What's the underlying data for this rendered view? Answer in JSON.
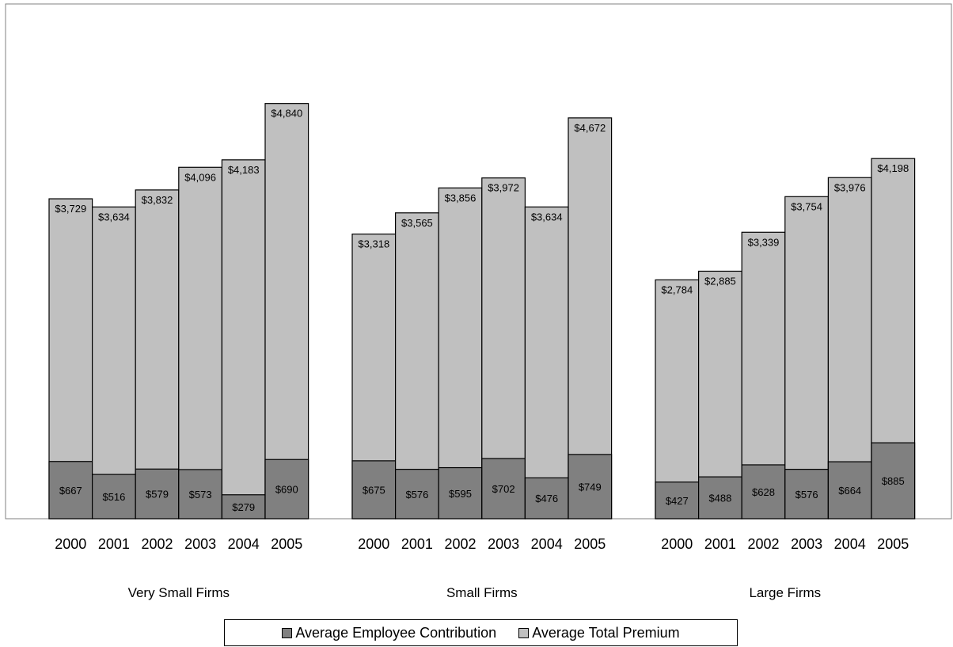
{
  "chart_data": {
    "type": "bar",
    "stacking": "overlay",
    "groups": [
      "Very Small Firms",
      "Small Firms",
      "Large Firms"
    ],
    "categories": [
      "2000",
      "2001",
      "2002",
      "2003",
      "2004",
      "2005"
    ],
    "ylim": [
      0,
      6000
    ],
    "grid": false,
    "legend": "bottom-center",
    "series": [
      {
        "name": "Average Employee Contribution",
        "color": "#808080",
        "values": [
          [
            667,
            516,
            579,
            573,
            279,
            690
          ],
          [
            675,
            576,
            595,
            702,
            476,
            749
          ],
          [
            427,
            488,
            628,
            576,
            664,
            885
          ]
        ],
        "labels": [
          [
            "$667",
            "$516",
            "$579",
            "$573",
            "$279",
            "$690"
          ],
          [
            "$675",
            "$576",
            "$595",
            "$702",
            "$476",
            "$749"
          ],
          [
            "$427",
            "$488",
            "$628",
            "$576",
            "$664",
            "$885"
          ]
        ]
      },
      {
        "name": "Average Total Premium",
        "color": "#c0c0c0",
        "values": [
          [
            3729,
            3634,
            3832,
            4096,
            4183,
            4840
          ],
          [
            3318,
            3565,
            3856,
            3972,
            3634,
            4672
          ],
          [
            2784,
            2885,
            3339,
            3754,
            3976,
            4198
          ]
        ],
        "labels": [
          [
            "$3,729",
            "$3,634",
            "$3,832",
            "$4,096",
            "$4,183",
            "$4,840"
          ],
          [
            "$3,318",
            "$3,565",
            "$3,856",
            "$3,972",
            "$3,634",
            "$4,672"
          ],
          [
            "$2,784",
            "$2,885",
            "$3,339",
            "$3,754",
            "$3,976",
            "$4,198"
          ]
        ]
      }
    ]
  }
}
